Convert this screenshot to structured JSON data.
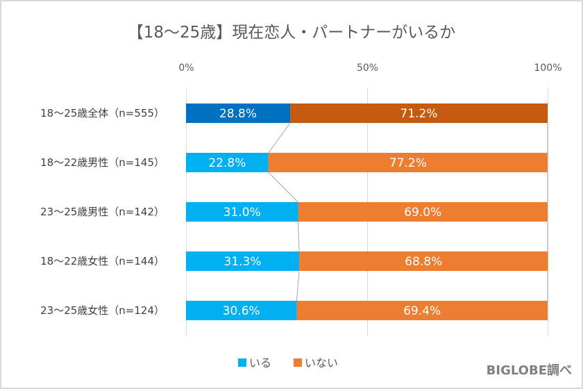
{
  "chart_data": {
    "type": "bar",
    "orientation": "horizontal",
    "stacked": "percent",
    "title": "【18～25歳】現在恋人・パートナーがいるか",
    "xlabel": "",
    "ylabel": "",
    "xlim": [
      0,
      100
    ],
    "x_ticks": [
      0,
      50,
      100
    ],
    "x_tick_labels": [
      "0%",
      "50%",
      "100%"
    ],
    "grid": true,
    "legend_position": "bottom",
    "categories": [
      "18～25歳全体（n=555）",
      "18～22歳男性（n=145）",
      "23～25歳男性（n=142）",
      "18～22歳女性（n=144）",
      "23～25歳女性（n=124）"
    ],
    "series": [
      {
        "name": "いる",
        "color": "#00b0f0",
        "highlight_color": "#0070c0",
        "values": [
          28.8,
          22.8,
          31.0,
          31.3,
          30.6
        ],
        "labels": [
          "28.8%",
          "22.8%",
          "31.0%",
          "31.3%",
          "30.6%"
        ]
      },
      {
        "name": "いない",
        "color": "#ed7d31",
        "highlight_color": "#c55a11",
        "values": [
          71.2,
          77.2,
          69.0,
          68.8,
          69.4
        ],
        "labels": [
          "71.2%",
          "77.2%",
          "69.0%",
          "68.8%",
          "69.4%"
        ]
      }
    ],
    "highlighted_category_index": 0,
    "series_lines": true,
    "source_note": "BIGLOBE調べ"
  }
}
